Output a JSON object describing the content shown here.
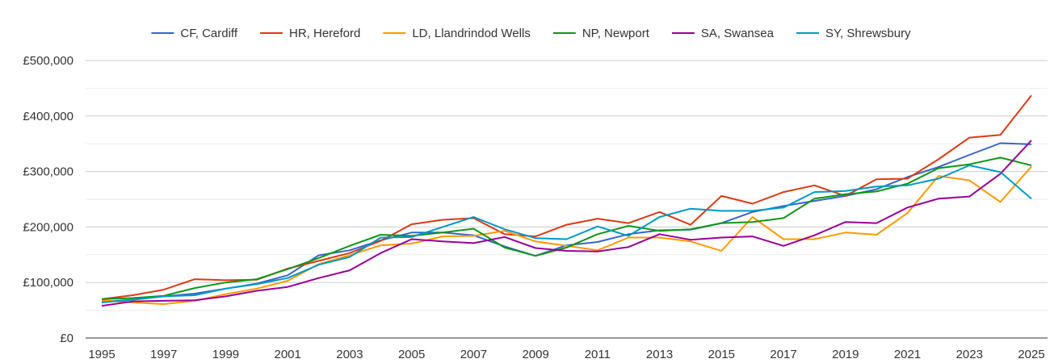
{
  "chart_data": {
    "type": "line",
    "title": "",
    "xlabel": "",
    "ylabel": "",
    "x": [
      1995,
      1996,
      1997,
      1998,
      1999,
      2000,
      2001,
      2002,
      2003,
      2004,
      2005,
      2006,
      2007,
      2008,
      2009,
      2010,
      2011,
      2012,
      2013,
      2014,
      2015,
      2016,
      2017,
      2018,
      2019,
      2020,
      2021,
      2022,
      2023,
      2024,
      2025
    ],
    "xticks": [
      1995,
      1997,
      1999,
      2001,
      2003,
      2005,
      2007,
      2009,
      2011,
      2013,
      2015,
      2017,
      2019,
      2021,
      2023,
      2025
    ],
    "xtick_labels": [
      "1995",
      "1997",
      "1999",
      "2001",
      "2003",
      "2005",
      "2007",
      "2009",
      "2011",
      "2013",
      "2015",
      "2017",
      "2019",
      "2021",
      "2023",
      "2025"
    ],
    "ylim": [
      0,
      500000
    ],
    "yticks": [
      0,
      100000,
      200000,
      300000,
      400000,
      500000
    ],
    "ytick_labels": [
      "£0",
      "£100,000",
      "£200,000",
      "£300,000",
      "£400,000",
      "£500,000"
    ],
    "grid": true,
    "legend_position": "top",
    "series": [
      {
        "name": "CF, Cardiff",
        "color": "#3366cc",
        "values": [
          65000,
          69000,
          75000,
          80000,
          89000,
          98000,
          113000,
          149000,
          158000,
          176000,
          190000,
          190000,
          185000,
          165000,
          148000,
          167000,
          173000,
          187000,
          194000,
          195000,
          207000,
          227000,
          238000,
          247000,
          256000,
          268000,
          290000,
          308000,
          330000,
          351000,
          349000
        ]
      },
      {
        "name": "HR, Hereford",
        "color": "#dc3912",
        "values": [
          70000,
          77000,
          87000,
          106000,
          104000,
          105000,
          125000,
          139000,
          153000,
          175000,
          205000,
          213000,
          216000,
          187000,
          183000,
          204000,
          215000,
          207000,
          227000,
          204000,
          256000,
          242000,
          263000,
          275000,
          256000,
          286000,
          287000,
          322000,
          361000,
          366000,
          437000
        ]
      },
      {
        "name": "LD, Llandrindod Wells",
        "color": "#ff9900",
        "values": [
          68000,
          64000,
          61000,
          67000,
          79000,
          89000,
          103000,
          133000,
          149000,
          167000,
          170000,
          183000,
          184000,
          193000,
          174000,
          166000,
          158000,
          181000,
          181000,
          174000,
          157000,
          218000,
          178000,
          178000,
          190000,
          186000,
          225000,
          292000,
          284000,
          245000,
          309000
        ]
      },
      {
        "name": "NP, Newport",
        "color": "#109618",
        "values": [
          70000,
          72000,
          76000,
          90000,
          100000,
          106000,
          124000,
          144000,
          166000,
          186000,
          184000,
          190000,
          197000,
          163000,
          148000,
          163000,
          187000,
          202000,
          193000,
          196000,
          207000,
          209000,
          216000,
          251000,
          259000,
          264000,
          278000,
          306000,
          313000,
          325000,
          311000
        ]
      },
      {
        "name": "SA, Swansea",
        "color": "#990099",
        "values": [
          58000,
          66000,
          67000,
          68000,
          75000,
          85000,
          92000,
          108000,
          122000,
          153000,
          178000,
          174000,
          171000,
          182000,
          162000,
          157000,
          156000,
          164000,
          187000,
          177000,
          181000,
          183000,
          166000,
          185000,
          209000,
          207000,
          235000,
          251000,
          255000,
          296000,
          356000
        ]
      },
      {
        "name": "SY, Shrewsbury",
        "color": "#0099c6",
        "values": [
          64000,
          69000,
          75000,
          77000,
          89000,
          97000,
          108000,
          132000,
          146000,
          181000,
          182000,
          200000,
          218000,
          196000,
          180000,
          178000,
          201000,
          184000,
          218000,
          233000,
          229000,
          229000,
          235000,
          263000,
          265000,
          273000,
          275000,
          287000,
          311000,
          299000,
          251000
        ]
      }
    ]
  }
}
